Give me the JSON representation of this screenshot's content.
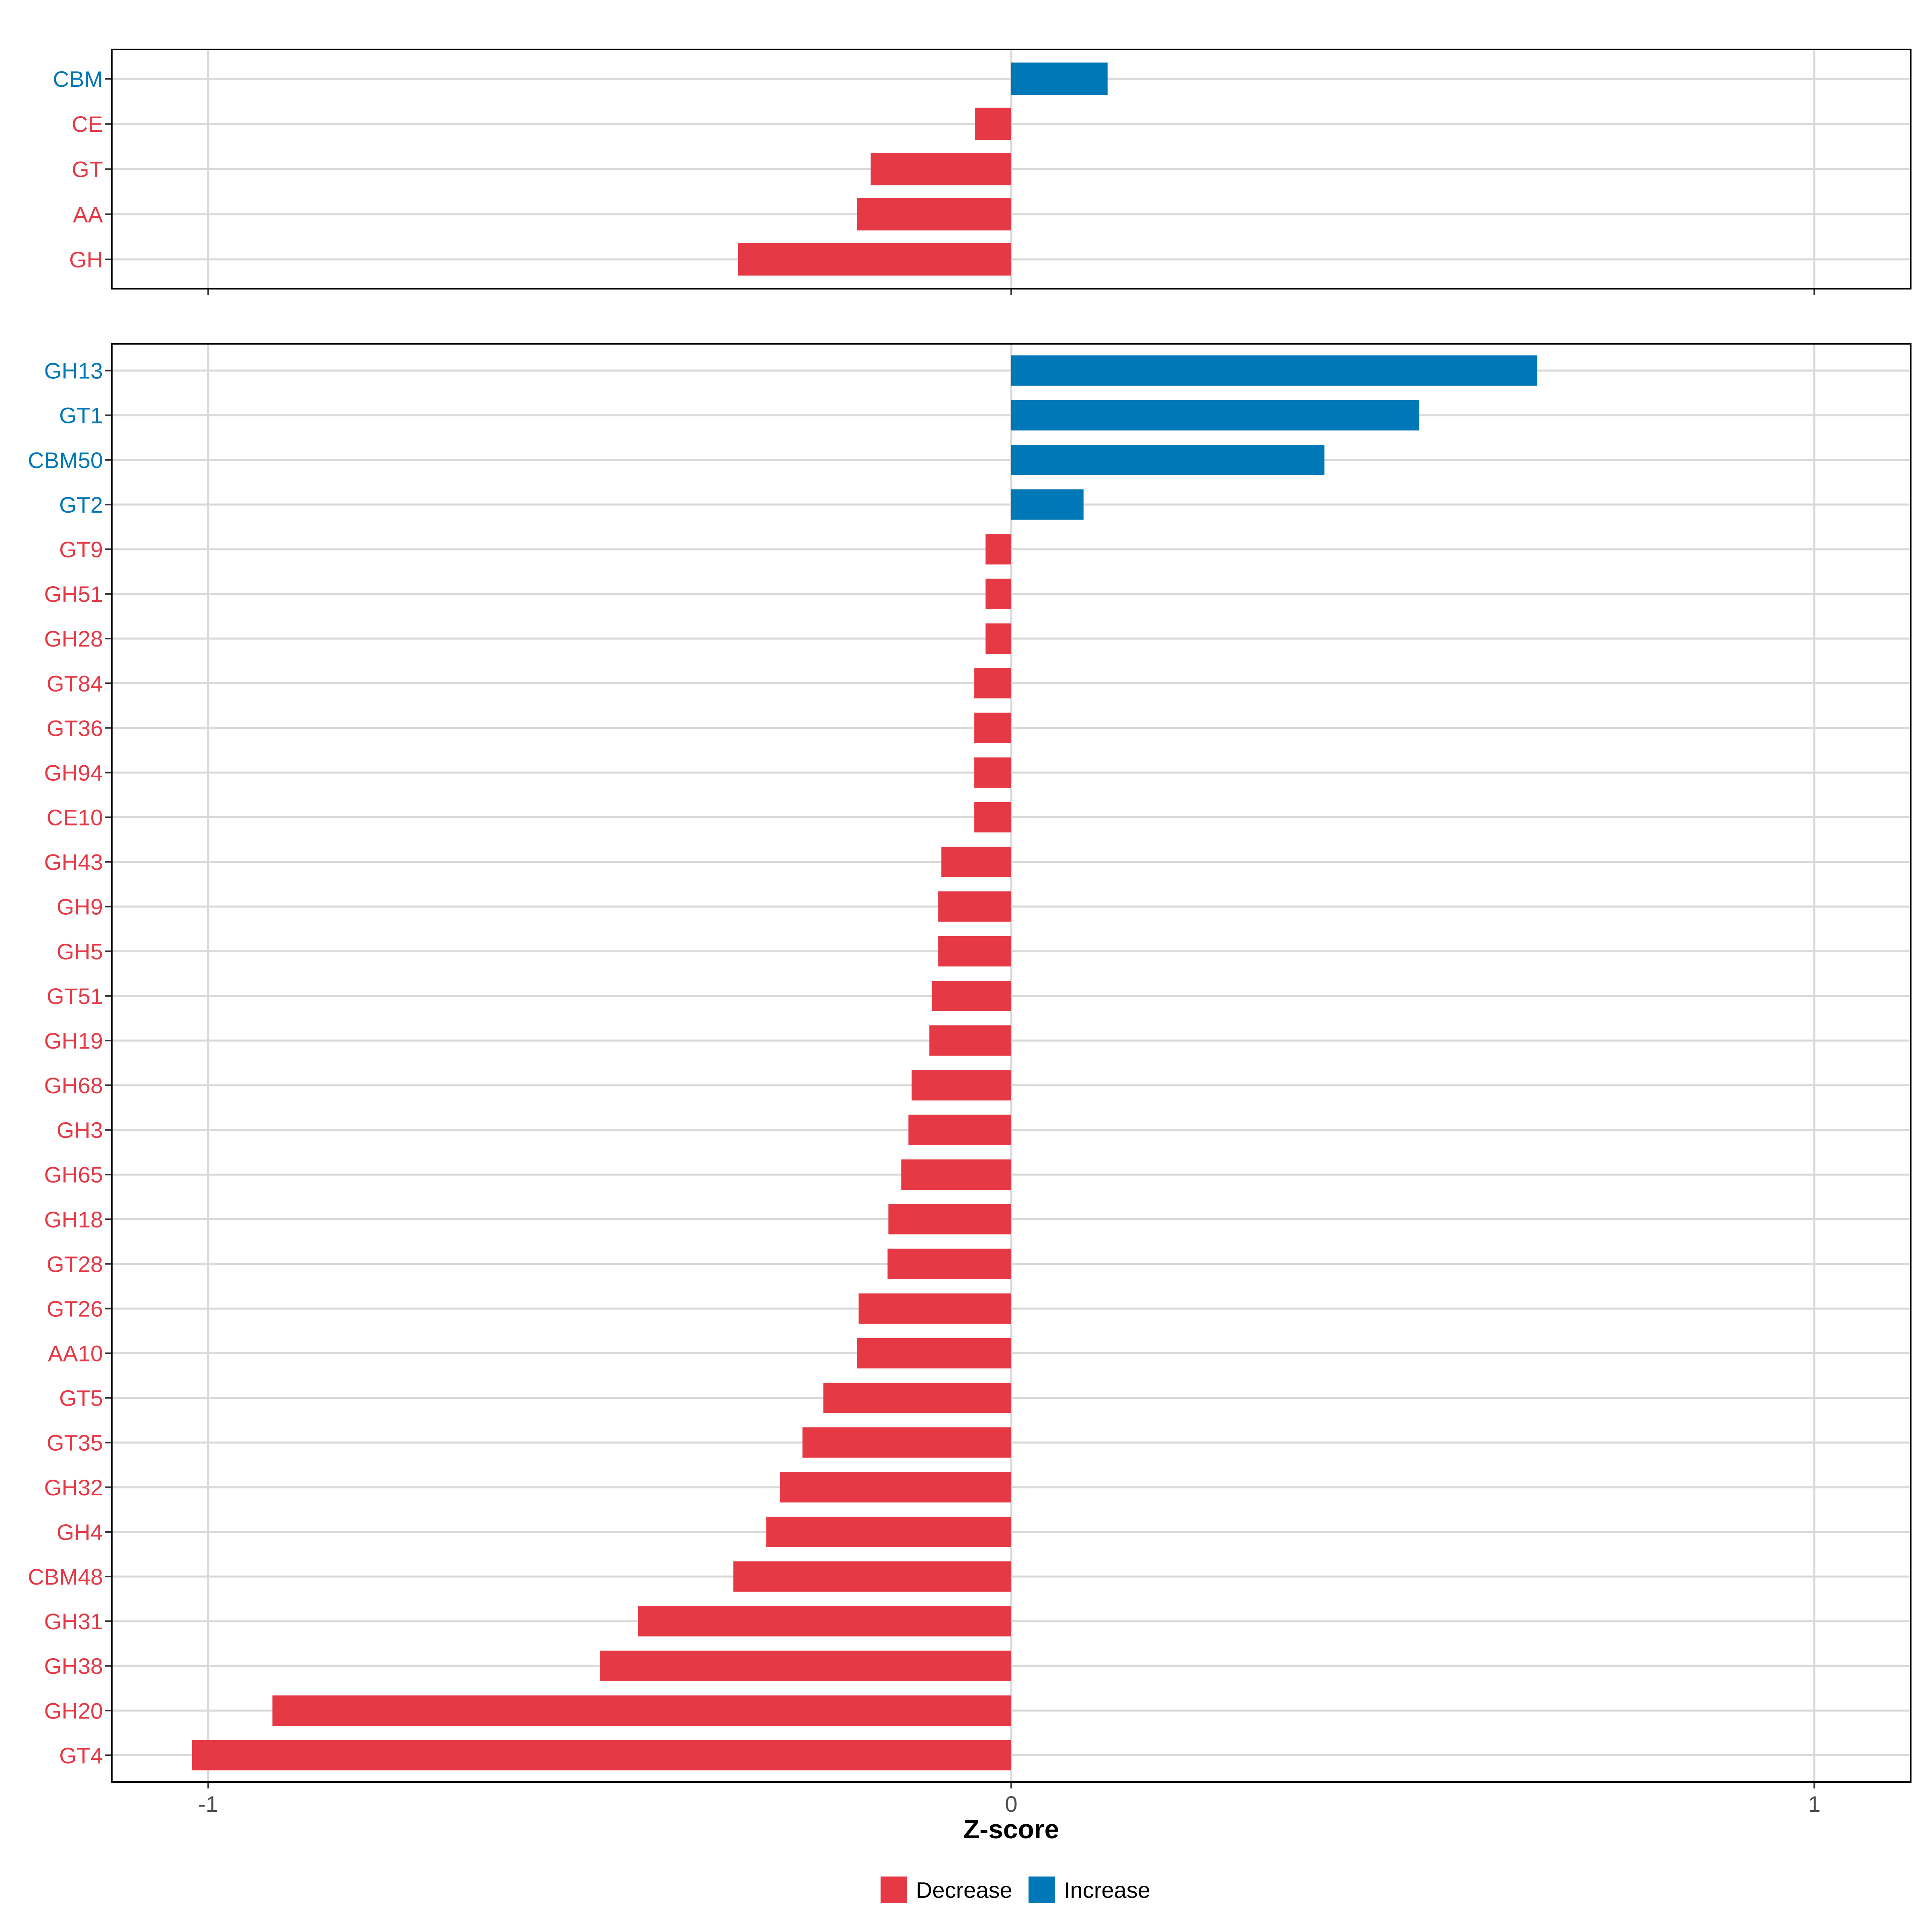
{
  "colors": {
    "decrease": "#E63946",
    "increase": "#0077B6",
    "grid": "#D9D9D9",
    "frame": "#000000"
  },
  "chart_data": [
    {
      "type": "bar",
      "orientation": "horizontal",
      "panel": "top",
      "categories": [
        "CBM",
        "CE",
        "GT",
        "AA",
        "GH"
      ],
      "values": [
        0.12,
        -0.045,
        -0.175,
        -0.192,
        -0.34
      ],
      "directions": [
        "Increase",
        "Decrease",
        "Decrease",
        "Decrease",
        "Decrease"
      ],
      "xlim": [
        -1.12,
        1.12
      ],
      "xticks": [
        -1,
        0,
        1
      ]
    },
    {
      "type": "bar",
      "orientation": "horizontal",
      "panel": "bottom",
      "categories": [
        "GH13",
        "GT1",
        "CBM50",
        "GT2",
        "GT9",
        "GH51",
        "GH28",
        "GT84",
        "GT36",
        "GH94",
        "CE10",
        "GH43",
        "GH9",
        "GH5",
        "GT51",
        "GH19",
        "GH68",
        "GH3",
        "GH65",
        "GH18",
        "GT28",
        "GT26",
        "AA10",
        "GT5",
        "GT35",
        "GH32",
        "GH4",
        "CBM48",
        "GH31",
        "GH38",
        "GH20",
        "GT4"
      ],
      "values": [
        0.655,
        0.508,
        0.39,
        0.09,
        -0.032,
        -0.032,
        -0.032,
        -0.046,
        -0.046,
        -0.046,
        -0.046,
        -0.087,
        -0.091,
        -0.091,
        -0.099,
        -0.102,
        -0.124,
        -0.128,
        -0.137,
        -0.153,
        -0.154,
        -0.19,
        -0.192,
        -0.234,
        -0.26,
        -0.288,
        -0.305,
        -0.346,
        -0.465,
        -0.512,
        -0.92,
        -1.02
      ],
      "directions": [
        "Increase",
        "Increase",
        "Increase",
        "Increase",
        "Decrease",
        "Decrease",
        "Decrease",
        "Decrease",
        "Decrease",
        "Decrease",
        "Decrease",
        "Decrease",
        "Decrease",
        "Decrease",
        "Decrease",
        "Decrease",
        "Decrease",
        "Decrease",
        "Decrease",
        "Decrease",
        "Decrease",
        "Decrease",
        "Decrease",
        "Decrease",
        "Decrease",
        "Decrease",
        "Decrease",
        "Decrease",
        "Decrease",
        "Decrease",
        "Decrease",
        "Decrease"
      ],
      "xlim": [
        -1.12,
        1.12
      ],
      "xticks": [
        -1,
        0,
        1
      ],
      "xlabel": "Z-score"
    }
  ],
  "xtick_labels": [
    "-1",
    "0",
    "1"
  ],
  "xlabel": "Z-score",
  "legend": {
    "position": "bottom",
    "items": [
      {
        "label": "Decrease",
        "key": "decrease"
      },
      {
        "label": "Increase",
        "key": "increase"
      }
    ]
  }
}
